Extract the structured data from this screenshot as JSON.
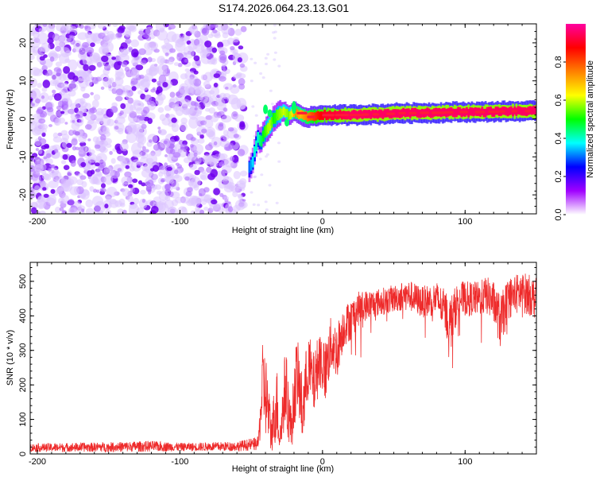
{
  "title": "S174.2026.064.23.13.G01",
  "chart_data": [
    {
      "type": "heatmap",
      "name": "spectrogram",
      "xlabel": "Height of straight line (km)",
      "ylabel": "Frequency (Hz)",
      "xlim": [
        -205,
        150
      ],
      "ylim": [
        -25,
        25
      ],
      "xticks": [
        -200,
        -100,
        0,
        100
      ],
      "xtick_labels": [
        "-200",
        "-100",
        "0",
        "100"
      ],
      "yticks": [
        -20,
        -10,
        0,
        10,
        20
      ],
      "ytick_labels": [
        "-20",
        "-10",
        "0",
        "10",
        "20"
      ],
      "noise_region_x": [
        -205,
        -55
      ],
      "signal_ridge": {
        "x": [
          -52,
          -50,
          -48,
          -46,
          -44,
          -42,
          -40,
          -38,
          -35,
          -32,
          -28,
          -24,
          -20,
          -16,
          -12,
          -8,
          -4,
          0,
          10,
          20,
          30,
          40,
          50,
          60,
          70,
          80,
          90,
          100,
          110,
          120,
          130,
          140,
          150
        ],
        "freq": [
          -13,
          -12,
          -8,
          -5,
          -6,
          -4,
          -3,
          -2,
          0,
          1,
          2,
          1,
          2,
          1,
          0.5,
          0.5,
          0.8,
          1,
          1,
          1,
          1.2,
          1.2,
          1.5,
          1.5,
          1.6,
          1.6,
          1.8,
          1.8,
          1.8,
          1.9,
          2,
          2,
          2
        ],
        "amplitude": [
          0.3,
          0.35,
          0.4,
          0.4,
          0.45,
          0.5,
          0.55,
          0.6,
          0.5,
          0.55,
          0.6,
          0.55,
          0.75,
          0.7,
          0.75,
          0.8,
          0.85,
          0.9,
          0.92,
          0.95,
          0.95,
          0.95,
          0.95,
          0.95,
          0.95,
          0.95,
          0.95,
          0.95,
          0.95,
          0.95,
          0.95,
          0.95,
          0.95
        ]
      },
      "colorbar": {
        "label": "Normalized spectral amplitude",
        "range": [
          0,
          1
        ],
        "ticks": [
          0.0,
          0.2,
          0.4,
          0.6,
          0.8
        ],
        "tick_labels": [
          "0.0",
          "0.2",
          "0.4",
          "0.6",
          "0.8"
        ],
        "colormap": [
          "#ffffff",
          "#a000ff",
          "#0000ff",
          "#00ffff",
          "#00ff00",
          "#ffff00",
          "#ff8000",
          "#ff0000",
          "#ff00a0"
        ]
      }
    },
    {
      "type": "line",
      "name": "snr",
      "xlabel": "Height of straight line (km)",
      "ylabel": "SNR (10 * v/v)",
      "xlim": [
        -205,
        150
      ],
      "ylim": [
        0,
        555
      ],
      "xticks": [
        -200,
        -100,
        0,
        100
      ],
      "xtick_labels": [
        "-200",
        "-100",
        "0",
        "100"
      ],
      "yticks": [
        0,
        100,
        200,
        300,
        400,
        500
      ],
      "ytick_labels": [
        "0",
        "100",
        "200",
        "300",
        "400",
        "500"
      ],
      "color": "#ee2b2b",
      "envelope": {
        "x": [
          -205,
          -150,
          -120,
          -100,
          -60,
          -45,
          -42,
          -40,
          -36,
          -32,
          -30,
          -26,
          -22,
          -18,
          -14,
          -10,
          -6,
          -2,
          2,
          6,
          10,
          15,
          20,
          25,
          30,
          40,
          50,
          60,
          70,
          80,
          85,
          90,
          95,
          100,
          110,
          115,
          120,
          125,
          130,
          140,
          150
        ],
        "mean": [
          18,
          20,
          22,
          20,
          22,
          30,
          200,
          180,
          60,
          150,
          40,
          200,
          70,
          240,
          120,
          260,
          200,
          280,
          240,
          320,
          300,
          370,
          390,
          420,
          430,
          440,
          450,
          460,
          440,
          450,
          420,
          380,
          450,
          450,
          450,
          460,
          440,
          380,
          450,
          470,
          450
        ],
        "spread": [
          12,
          14,
          16,
          12,
          14,
          20,
          120,
          130,
          60,
          110,
          40,
          120,
          70,
          110,
          100,
          100,
          90,
          90,
          90,
          80,
          80,
          60,
          60,
          50,
          45,
          40,
          40,
          45,
          45,
          50,
          60,
          80,
          50,
          50,
          50,
          55,
          60,
          80,
          60,
          60,
          60
        ]
      }
    }
  ]
}
